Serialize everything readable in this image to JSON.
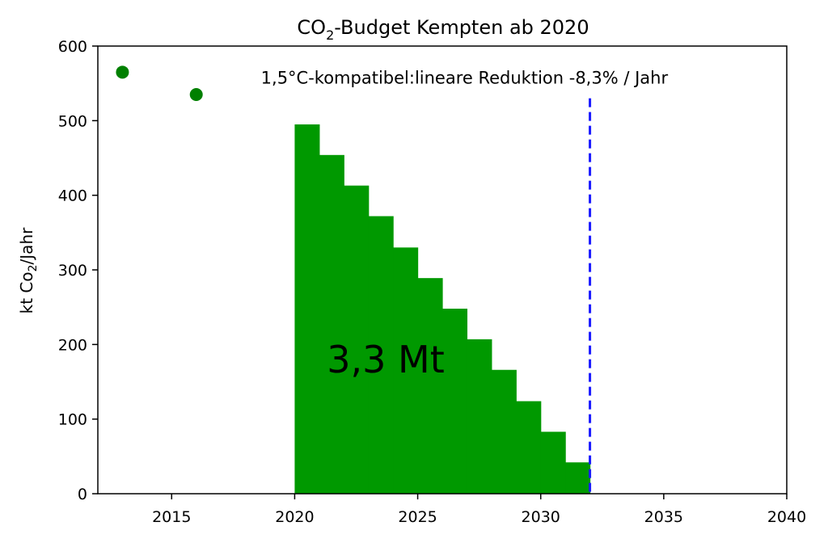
{
  "chart_data": {
    "type": "bar",
    "title": "CO₂-Budget Kempten ab 2020",
    "title_parts": {
      "pre": "CO",
      "sub": "2",
      "post": "-Budget Kempten ab 2020"
    },
    "ylabel": "kt Co₂/Jahr",
    "ylabel_parts": {
      "pre": "kt Co",
      "sub": "2",
      "post": "/Jahr"
    },
    "xlabel": "",
    "xlim": [
      2012,
      2040
    ],
    "ylim": [
      0,
      600
    ],
    "x_ticks": [
      2015,
      2020,
      2025,
      2030,
      2035,
      2040
    ],
    "y_ticks": [
      0,
      100,
      200,
      300,
      400,
      500,
      600
    ],
    "grid": false,
    "bar_color": "#009900",
    "point_color": "#008000",
    "vline_color": "#1a1aff",
    "bars": {
      "x_start": [
        2020,
        2021,
        2022,
        2023,
        2024,
        2025,
        2026,
        2027,
        2028,
        2029,
        2030,
        2031
      ],
      "width": 1,
      "values": [
        495,
        454,
        413,
        372,
        330,
        289,
        248,
        207,
        166,
        124,
        83,
        42
      ]
    },
    "points": [
      {
        "x": 2013,
        "y": 565
      },
      {
        "x": 2016,
        "y": 535
      }
    ],
    "vline": {
      "x": 2032,
      "y_top": 530
    },
    "annotations": {
      "top": {
        "text": "1,5°C-kompatibel:lineare Reduktion -8,3% / Jahr",
        "x": 2026.9,
        "y": 557
      },
      "budget": {
        "text": "3,3 Mt",
        "x": 2023.7,
        "y": 180
      }
    }
  }
}
